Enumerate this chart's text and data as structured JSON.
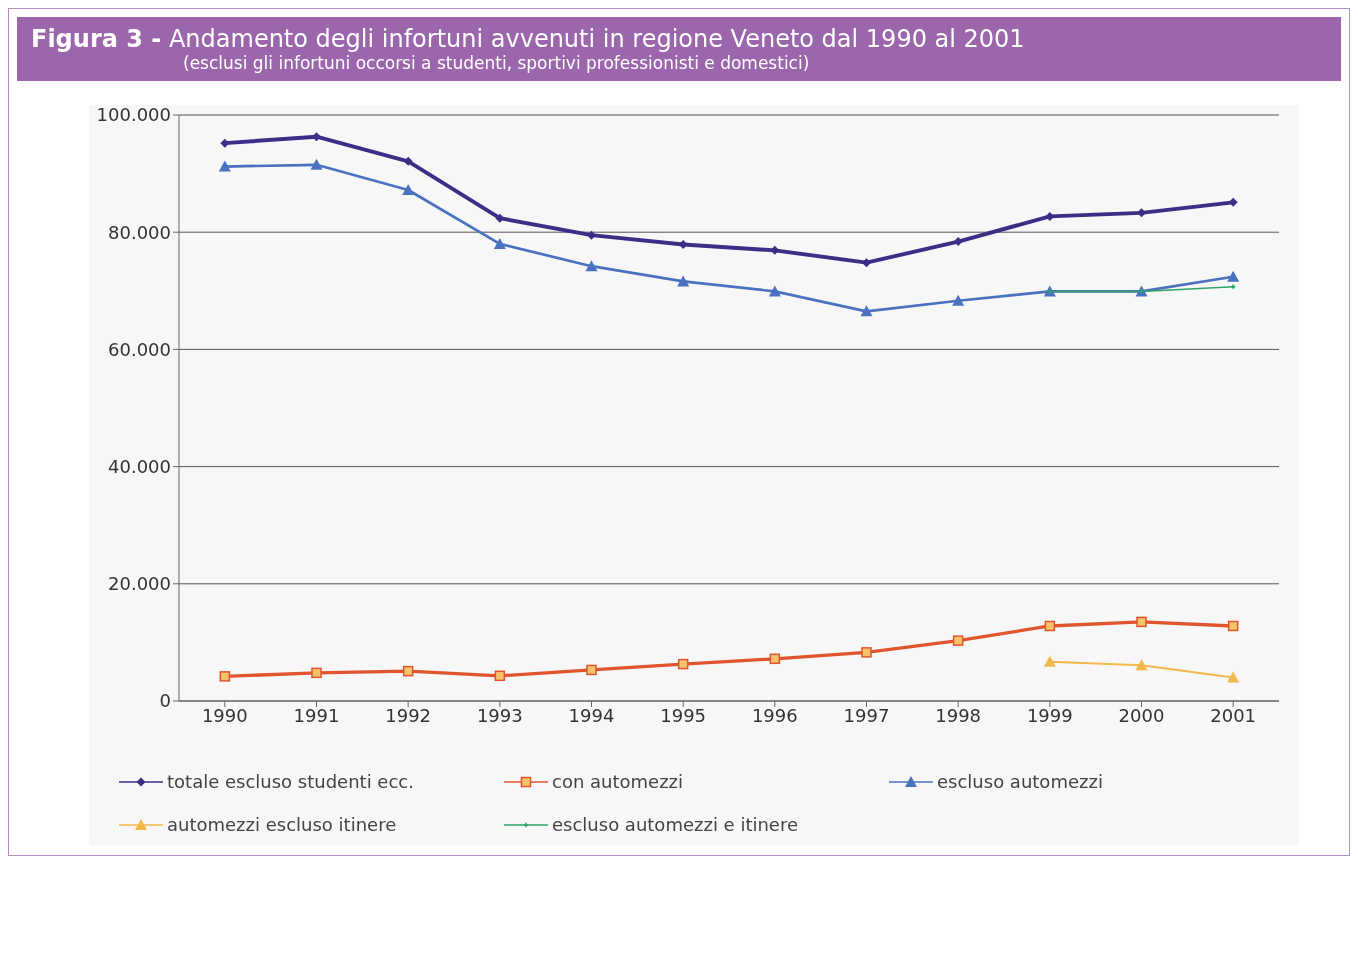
{
  "chart_data": {
    "type": "line",
    "title": "Figura 3 - Andamento degli infortuni avvenuti in regione Veneto dal 1990 al 2001",
    "subtitle": "(esclusi gli infortuni occorsi a studenti, sportivi professionisti e domestici)",
    "categories": [
      "1990",
      "1991",
      "1992",
      "1993",
      "1994",
      "1995",
      "1996",
      "1997",
      "1998",
      "1999",
      "2000",
      "2001"
    ],
    "ylim": [
      0,
      100000
    ],
    "yticks": [
      {
        "value": 0,
        "label": "0"
      },
      {
        "value": 20000,
        "label": "20.000"
      },
      {
        "value": 40000,
        "label": "40.000"
      },
      {
        "value": 60000,
        "label": "60.000"
      },
      {
        "value": 80000,
        "label": "80.000"
      },
      {
        "value": 100000,
        "label": "100.000"
      }
    ],
    "grid": "y",
    "legend": "bottom",
    "series": [
      {
        "name": "totale escluso studenti ecc.",
        "color": "#3a2f86",
        "marker": "diamond",
        "values": [
          95200,
          96300,
          92100,
          82400,
          79500,
          77900,
          76900,
          74800,
          78400,
          82700,
          83300,
          85100
        ]
      },
      {
        "name": "con automezzi",
        "color": "#e0552e",
        "marker": "square",
        "values": [
          4200,
          4800,
          5100,
          4300,
          5300,
          6300,
          7200,
          8300,
          10300,
          12800,
          13500,
          12800
        ]
      },
      {
        "name": "escluso automezzi",
        "color": "#4a72c0",
        "marker": "triangle",
        "values": [
          91200,
          91500,
          87200,
          78000,
          74200,
          71600,
          69900,
          66500,
          68300,
          69900,
          69900,
          72400
        ]
      },
      {
        "name": "automezzi escluso itinere",
        "color": "#f2b84a",
        "marker": "triangle",
        "values": [
          null,
          null,
          null,
          null,
          null,
          null,
          null,
          null,
          null,
          6700,
          6100,
          4000
        ]
      },
      {
        "name": "escluso automezzi e itinere",
        "color": "#2fa36a",
        "marker": "star",
        "values": [
          null,
          null,
          null,
          null,
          null,
          null,
          null,
          null,
          null,
          69900,
          69900,
          70700
        ]
      }
    ]
  }
}
